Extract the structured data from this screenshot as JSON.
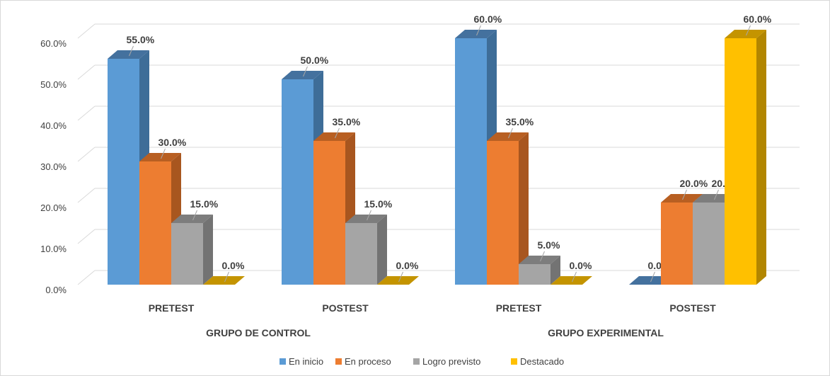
{
  "chart_data": {
    "type": "bar",
    "subtype": "clustered-3d-column",
    "groups": [
      {
        "label": "GRUPO DE CONTROL",
        "categories": [
          "PRETEST",
          "POSTEST"
        ]
      },
      {
        "label": "GRUPO EXPERIMENTAL",
        "categories": [
          "PRETEST",
          "POSTEST"
        ]
      }
    ],
    "categories": [
      "PRETEST",
      "POSTEST",
      "PRETEST",
      "POSTEST"
    ],
    "series": [
      {
        "name": "En inicio",
        "color": "#5b9bd5",
        "side": "#3e6d98",
        "top": "#44719e",
        "values": [
          55,
          50,
          60,
          0
        ],
        "labels": [
          "55.0%",
          "50.0%",
          "60.0%",
          "0.0%"
        ]
      },
      {
        "name": "En proceso",
        "color": "#ed7d31",
        "side": "#a8561f",
        "top": "#b85f22",
        "values": [
          30,
          35,
          35,
          20
        ],
        "labels": [
          "30.0%",
          "35.0%",
          "35.0%",
          "20.0%"
        ]
      },
      {
        "name": "Logro previsto",
        "color": "#a5a5a5",
        "side": "#737373",
        "top": "#7d7d7d",
        "values": [
          15,
          15,
          5,
          20
        ],
        "labels": [
          "15.0%",
          "15.0%",
          "5.0%",
          "20.0%"
        ]
      },
      {
        "name": "Destacado",
        "color": "#ffc000",
        "side": "#b28600",
        "top": "#c49400",
        "values": [
          0,
          0,
          0,
          60
        ],
        "labels": [
          "0.0%",
          "0.0%",
          "0.0%",
          "60.0%"
        ]
      }
    ],
    "yticks": [
      "0.0%",
      "10.0%",
      "20.0%",
      "30.0%",
      "40.0%",
      "50.0%",
      "60.0%"
    ],
    "ylim": [
      0,
      60
    ],
    "grid": true,
    "legend_position": "bottom"
  }
}
